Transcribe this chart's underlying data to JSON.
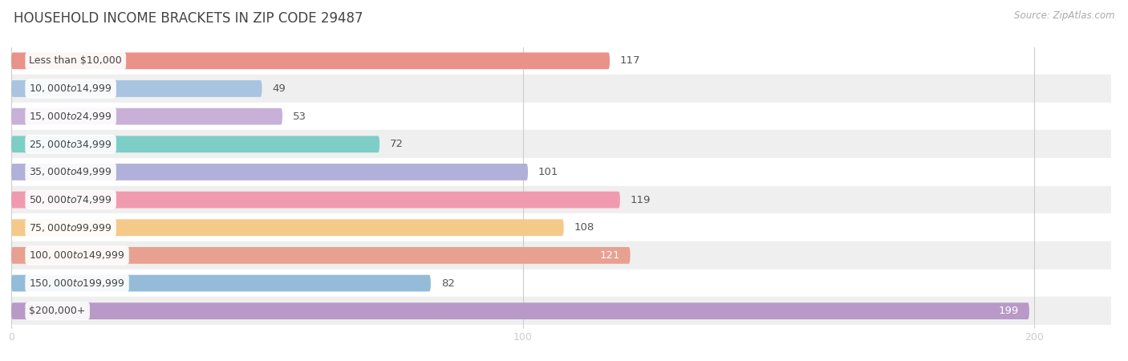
{
  "title": "HOUSEHOLD INCOME BRACKETS IN ZIP CODE 29487",
  "source": "Source: ZipAtlas.com",
  "categories": [
    "Less than $10,000",
    "$10,000 to $14,999",
    "$15,000 to $24,999",
    "$25,000 to $34,999",
    "$35,000 to $49,999",
    "$50,000 to $74,999",
    "$75,000 to $99,999",
    "$100,000 to $149,999",
    "$150,000 to $199,999",
    "$200,000+"
  ],
  "values": [
    117,
    49,
    53,
    72,
    101,
    119,
    108,
    121,
    82,
    199
  ],
  "bar_colors": [
    "#e8928a",
    "#a8c4e0",
    "#c9b0d8",
    "#7ecec8",
    "#b0b0d8",
    "#f09ab0",
    "#f5c98a",
    "#e8a090",
    "#94bcd8",
    "#b899c8"
  ],
  "label_colors": [
    "#555555",
    "#555555",
    "#555555",
    "#555555",
    "#555555",
    "#555555",
    "#555555",
    "#ffffff",
    "#555555",
    "#ffffff"
  ],
  "xlim": [
    0,
    215
  ],
  "xticks": [
    0,
    100,
    200
  ],
  "title_fontsize": 12,
  "source_fontsize": 8.5,
  "label_fontsize": 9.5,
  "bar_height": 0.6,
  "row_colors": [
    "#ffffff",
    "#efefef"
  ]
}
